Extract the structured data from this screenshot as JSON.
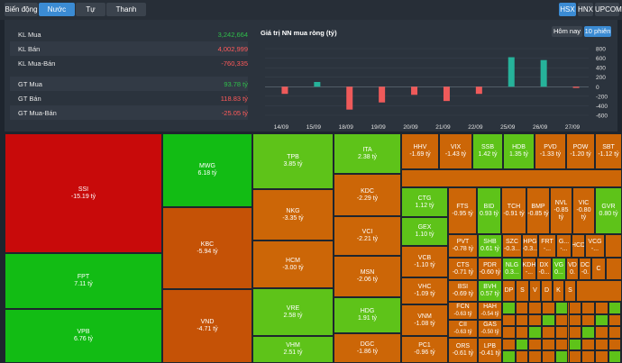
{
  "tabs": [
    {
      "label": "Biến động",
      "active": false
    },
    {
      "label": "Nước ngoài",
      "active": true
    },
    {
      "label": "Tự doanh",
      "active": false
    },
    {
      "label": "Thanh khoản",
      "active": false
    }
  ],
  "exchanges": [
    {
      "label": "HSX",
      "active": true
    },
    {
      "label": "HNX",
      "active": false
    },
    {
      "label": "UPCOM",
      "active": false
    }
  ],
  "stats": [
    {
      "label": "KL Mua",
      "value": "3,242,664",
      "color": "green"
    },
    {
      "label": "KL Bán",
      "value": "4,002,999",
      "color": "red"
    },
    {
      "label": "KL Mua-Bán",
      "value": "-760,335",
      "color": "red"
    },
    {
      "label": "GT Mua",
      "value": "93.78 tỷ",
      "color": "green"
    },
    {
      "label": "GT Bán",
      "value": "118.83 tỷ",
      "color": "red"
    },
    {
      "label": "GT Mua-Bán",
      "value": "-25.05 tỷ",
      "color": "red"
    }
  ],
  "chart_title": "Giá trị NN mua ròng (tỷ)",
  "period_buttons": [
    {
      "label": "Hôm nay",
      "active": false
    },
    {
      "label": "10 phiên",
      "active": true
    }
  ],
  "chart_data": {
    "type": "bar",
    "categories": [
      "14/09",
      "15/09",
      "18/09",
      "19/09",
      "20/09",
      "21/09",
      "22/09",
      "25/09",
      "26/09",
      "27/09"
    ],
    "series": [
      {
        "values": [
          -150,
          100,
          -480,
          -330,
          -170,
          -300,
          -150,
          620,
          560,
          -25
        ]
      },
      {
        "values": [
          0,
          0,
          0,
          0,
          0,
          0,
          0,
          0,
          0,
          0
        ]
      }
    ],
    "yticks": [
      "800",
      "600",
      "400",
      "200",
      "0",
      "-200",
      "-400",
      "-600"
    ],
    "ylim": [
      -600,
      800
    ]
  },
  "treemap": [
    {
      "t": "SSI",
      "v": "-15.19 tỷ"
    },
    {
      "t": "FPT",
      "v": "7.11 tỷ"
    },
    {
      "t": "VPB",
      "v": "6.76 tỷ"
    },
    {
      "t": "MWG",
      "v": "6.18 tỷ"
    },
    {
      "t": "KBC",
      "v": "-5.94 tỷ"
    },
    {
      "t": "VND",
      "v": "-4.71 tỷ"
    },
    {
      "t": "TPB",
      "v": "3.85 tỷ"
    },
    {
      "t": "NKG",
      "v": "-3.35 tỷ"
    },
    {
      "t": "HCM",
      "v": "-3.00 tỷ"
    },
    {
      "t": "VRE",
      "v": "2.58 tỷ"
    },
    {
      "t": "VHM",
      "v": "2.51 tỷ"
    },
    {
      "t": "ITA",
      "v": "2.38 tỷ"
    },
    {
      "t": "KDC",
      "v": "-2.29 tỷ"
    },
    {
      "t": "VCI",
      "v": "-2.21 tỷ"
    },
    {
      "t": "MSN",
      "v": "-2.06 tỷ"
    },
    {
      "t": "HDG",
      "v": "1.91 tỷ"
    },
    {
      "t": "DGC",
      "v": "-1.86 tỷ"
    },
    {
      "t": "HHV",
      "v": "-1.69 tỷ"
    },
    {
      "t": "VIX",
      "v": "-1.43 tỷ"
    },
    {
      "t": "SSB",
      "v": "1.42 tỷ"
    },
    {
      "t": "HDB",
      "v": "1.35 tỷ"
    },
    {
      "t": "PVD",
      "v": "-1.33 tỷ"
    },
    {
      "t": "POW",
      "v": "-1.20 tỷ"
    },
    {
      "t": "SBT",
      "v": "-1.12 tỷ"
    },
    {
      "t": "CTG",
      "v": "1.12 tỷ"
    },
    {
      "t": "GEX",
      "v": "1.10 tỷ"
    },
    {
      "t": "VCB",
      "v": "-1.10 tỷ"
    },
    {
      "t": "VHC",
      "v": "-1.09 tỷ"
    },
    {
      "t": "VNM",
      "v": "-1.08 tỷ"
    },
    {
      "t": "PC1",
      "v": "-0.96 tỷ"
    },
    {
      "t": "FTS",
      "v": "-0.95 tỷ"
    },
    {
      "t": "BID",
      "v": "0.93 tỷ"
    },
    {
      "t": "TCH",
      "v": "-0.91 tỷ"
    },
    {
      "t": "BMP",
      "v": "-0.85 tỷ"
    },
    {
      "t": "NVL",
      "v": "-0.85 tỷ"
    },
    {
      "t": "VIC",
      "v": "-0.80 tỷ"
    },
    {
      "t": "GVR",
      "v": "0.80 tỷ"
    },
    {
      "t": "PVT",
      "v": "-0.78 tỷ"
    },
    {
      "t": "SHB",
      "v": "0.61 tỷ"
    },
    {
      "t": "SZC",
      "v": "-0.3..."
    },
    {
      "t": "HPG",
      "v": "-0.3..."
    },
    {
      "t": "FRT",
      "v": "-..."
    },
    {
      "t": "G...",
      "v": "-..."
    },
    {
      "t": "HCD",
      "v": ""
    },
    {
      "t": "VCG",
      "v": "-..."
    },
    {
      "t": "CTS",
      "v": "-0.71 tỷ"
    },
    {
      "t": "PDR",
      "v": "-0.60 tỷ"
    },
    {
      "t": "NLG",
      "v": "0.3..."
    },
    {
      "t": "KDH",
      "v": "-..."
    },
    {
      "t": "DX",
      "v": "-0..."
    },
    {
      "t": "VG",
      "v": "0..."
    },
    {
      "t": "VD",
      "v": "0."
    },
    {
      "t": "DC",
      "v": "-0."
    },
    {
      "t": "C",
      "v": ""
    },
    {
      "t": "BSI",
      "v": "-0.69 tỷ"
    },
    {
      "t": "BVH",
      "v": "0.57 tỷ"
    },
    {
      "t": "DP",
      "v": ""
    },
    {
      "t": "S",
      "v": ""
    },
    {
      "t": "V",
      "v": ""
    },
    {
      "t": "D",
      "v": ""
    },
    {
      "t": "K",
      "v": ""
    },
    {
      "t": "S",
      "v": ""
    },
    {
      "t": "FCN",
      "v": "-0.63 tỷ"
    },
    {
      "t": "HAH",
      "v": "-0.54 tỷ"
    },
    {
      "t": "CII",
      "v": "-0.63 tỷ"
    },
    {
      "t": "GAS",
      "v": "-0.50 tỷ"
    },
    {
      "t": "ORS",
      "v": "-0.61 tỷ"
    },
    {
      "t": "LPB",
      "v": "-0.41 tỷ"
    }
  ],
  "colors": {
    "strong_red": "#c80a0a",
    "strong_green": "#12bc14",
    "light_green": "#5ec319",
    "orange": "#cc6607",
    "dark_orange": "#c55206",
    "positive_bar": "#26b29a",
    "negative_bar": "#ef5a5a"
  }
}
